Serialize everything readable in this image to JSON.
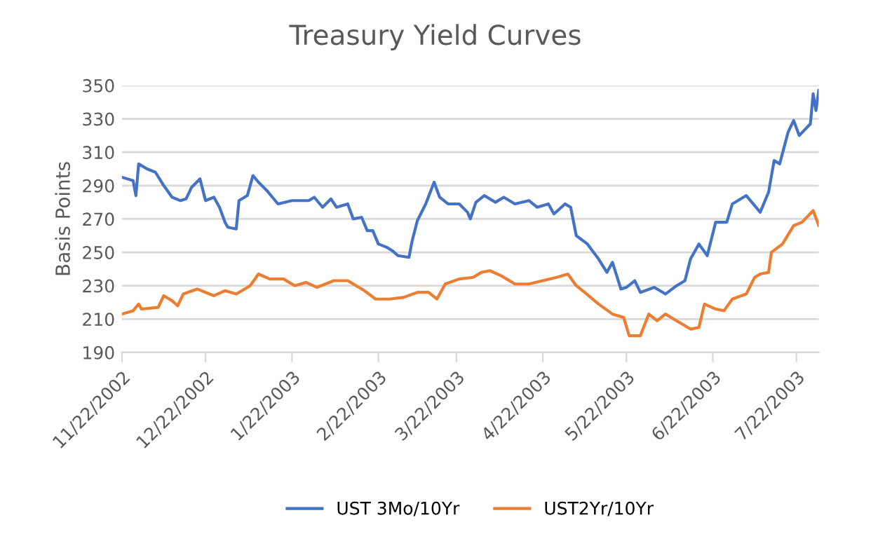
{
  "chart_data": {
    "type": "line",
    "title": "Treasury Yield Curves",
    "ylabel": "Basis Points",
    "xlim": [
      "2002-11-22",
      "2003-07-30"
    ],
    "xticks": [
      {
        "value": "2002-11-22",
        "label": "11/22/2002"
      },
      {
        "value": "2002-12-22",
        "label": "12/22/2002"
      },
      {
        "value": "2003-01-22",
        "label": "1/22/2003"
      },
      {
        "value": "2003-02-22",
        "label": "2/22/2003"
      },
      {
        "value": "2003-03-22",
        "label": "3/22/2003"
      },
      {
        "value": "2003-04-22",
        "label": "4/22/2003"
      },
      {
        "value": "2003-05-22",
        "label": "5/22/2003"
      },
      {
        "value": "2003-06-22",
        "label": "6/22/2003"
      },
      {
        "value": "2003-07-22",
        "label": "7/22/2003"
      }
    ],
    "ylim": [
      190,
      350
    ],
    "yticks": [
      190,
      210,
      230,
      250,
      270,
      290,
      310,
      330,
      350
    ],
    "grid": "y",
    "legend": "bottom",
    "line_style": "solid",
    "marker": "none",
    "series": [
      {
        "name": "UST 3Mo/10Yr",
        "color": "#4472c4",
        "x": [
          "2002-11-22",
          "2002-11-26",
          "2002-11-27",
          "2002-11-28",
          "2002-12-01",
          "2002-12-04",
          "2002-12-07",
          "2002-12-10",
          "2002-12-13",
          "2002-12-15",
          "2002-12-17",
          "2002-12-20",
          "2002-12-22",
          "2002-12-25",
          "2002-12-27",
          "2002-12-29",
          "2002-12-30",
          "2003-01-02",
          "2003-01-03",
          "2003-01-06",
          "2003-01-08",
          "2003-01-10",
          "2003-01-13",
          "2003-01-15",
          "2003-01-17",
          "2003-01-22",
          "2003-01-28",
          "2003-01-30",
          "2003-02-02",
          "2003-02-05",
          "2003-02-07",
          "2003-02-11",
          "2003-02-13",
          "2003-02-16",
          "2003-02-18",
          "2003-02-20",
          "2003-02-22",
          "2003-02-25",
          "2003-02-27",
          "2003-03-01",
          "2003-03-05",
          "2003-03-06",
          "2003-03-08",
          "2003-03-11",
          "2003-03-14",
          "2003-03-16",
          "2003-03-19",
          "2003-03-23",
          "2003-03-26",
          "2003-03-27",
          "2003-03-29",
          "2003-04-01",
          "2003-04-05",
          "2003-04-08",
          "2003-04-12",
          "2003-04-17",
          "2003-04-20",
          "2003-04-24",
          "2003-04-26",
          "2003-04-30",
          "2003-05-02",
          "2003-05-04",
          "2003-05-08",
          "2003-05-12",
          "2003-05-15",
          "2003-05-17",
          "2003-05-20",
          "2003-05-22",
          "2003-05-25",
          "2003-05-27",
          "2003-06-01",
          "2003-06-05",
          "2003-06-09",
          "2003-06-12",
          "2003-06-14",
          "2003-06-17",
          "2003-06-20",
          "2003-06-23",
          "2003-06-27",
          "2003-06-29",
          "2003-07-04",
          "2003-07-09",
          "2003-07-12",
          "2003-07-14",
          "2003-07-16",
          "2003-07-19",
          "2003-07-21",
          "2003-07-23",
          "2003-07-27",
          "2003-07-28",
          "2003-07-29",
          "2003-07-30"
        ],
        "values": [
          295,
          293,
          284,
          303,
          300,
          298,
          290,
          283,
          281,
          282,
          289,
          294,
          281,
          283,
          277,
          268,
          265,
          264,
          281,
          284,
          296,
          292,
          287,
          283,
          279,
          281,
          281,
          283,
          277,
          282,
          277,
          279,
          270,
          271,
          263,
          263,
          255,
          253,
          251,
          248,
          247,
          256,
          269,
          279,
          292,
          283,
          279,
          279,
          274,
          270,
          280,
          284,
          280,
          283,
          279,
          281,
          277,
          279,
          273,
          279,
          277,
          260,
          255,
          246,
          238,
          244,
          228,
          229,
          233,
          226,
          229,
          225,
          230,
          233,
          246,
          255,
          248,
          268,
          268,
          279,
          284,
          274,
          286,
          305,
          303,
          322,
          329,
          320,
          327,
          345,
          335,
          347
        ]
      },
      {
        "name": "UST2Yr/10Yr",
        "color": "#ed7d31",
        "x": [
          "2002-11-22",
          "2002-11-26",
          "2002-11-28",
          "2002-11-29",
          "2002-12-05",
          "2002-12-07",
          "2002-12-10",
          "2002-12-12",
          "2002-12-14",
          "2002-12-19",
          "2002-12-22",
          "2002-12-25",
          "2002-12-29",
          "2003-01-02",
          "2003-01-05",
          "2003-01-07",
          "2003-01-10",
          "2003-01-14",
          "2003-01-19",
          "2003-01-23",
          "2003-01-27",
          "2003-01-31",
          "2003-02-06",
          "2003-02-11",
          "2003-02-15",
          "2003-02-17",
          "2003-02-21",
          "2003-02-26",
          "2003-03-03",
          "2003-03-08",
          "2003-03-12",
          "2003-03-15",
          "2003-03-18",
          "2003-03-23",
          "2003-03-28",
          "2003-03-31",
          "2003-04-03",
          "2003-04-07",
          "2003-04-12",
          "2003-04-17",
          "2003-04-22",
          "2003-04-27",
          "2003-05-01",
          "2003-05-04",
          "2003-05-07",
          "2003-05-12",
          "2003-05-17",
          "2003-05-21",
          "2003-05-23",
          "2003-05-27",
          "2003-05-30",
          "2003-06-02",
          "2003-06-05",
          "2003-06-09",
          "2003-06-14",
          "2003-06-17",
          "2003-06-19",
          "2003-06-23",
          "2003-06-26",
          "2003-06-29",
          "2003-07-04",
          "2003-07-07",
          "2003-07-09",
          "2003-07-12",
          "2003-07-13",
          "2003-07-17",
          "2003-07-21",
          "2003-07-24",
          "2003-07-28",
          "2003-07-30"
        ],
        "values": [
          213,
          215,
          219,
          216,
          217,
          224,
          221,
          218,
          225,
          228,
          226,
          224,
          227,
          225,
          228,
          230,
          237,
          234,
          234,
          230,
          232,
          229,
          233,
          233,
          229,
          227,
          222,
          222,
          223,
          226,
          226,
          222,
          231,
          234,
          235,
          238,
          239,
          236,
          231,
          231,
          233,
          235,
          237,
          230,
          226,
          219,
          213,
          211,
          200,
          200,
          213,
          209,
          213,
          209,
          204,
          205,
          219,
          216,
          215,
          222,
          225,
          235,
          237,
          238,
          250,
          255,
          266,
          268,
          275,
          266
        ]
      }
    ]
  }
}
